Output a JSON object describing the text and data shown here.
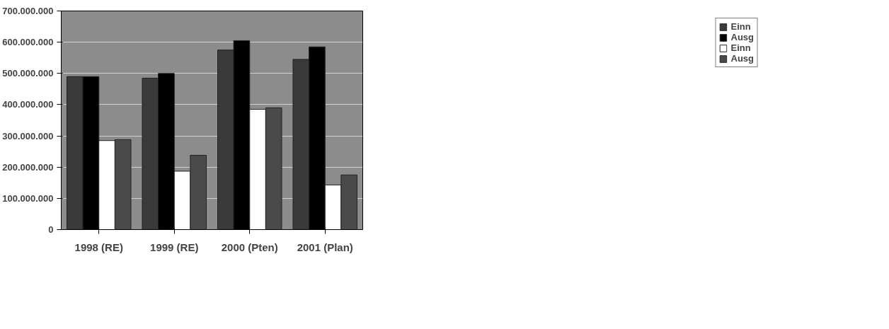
{
  "chart_data": {
    "type": "bar",
    "categories": [
      "1998 (RE)",
      "1999 (RE)",
      "2000 (Pten)",
      "2001 (Plan)"
    ],
    "series": [
      {
        "name": "Einn",
        "color": "#3a3a3a",
        "values": [
          490000000,
          485000000,
          575000000,
          545000000
        ]
      },
      {
        "name": "Ausg",
        "color": "#000000",
        "values": [
          490000000,
          500000000,
          605000000,
          585000000
        ]
      },
      {
        "name": "Einn",
        "color": "#ffffff",
        "values": [
          285000000,
          187000000,
          385000000,
          143000000
        ]
      },
      {
        "name": "Ausg",
        "color": "#4a4a4a",
        "values": [
          288000000,
          238000000,
          390000000,
          175000000
        ]
      }
    ],
    "ylim": [
      0,
      700000000
    ],
    "yticks": [
      0,
      {
        "value": 100000000,
        "label": "100.000.000"
      },
      {
        "value": 200000000,
        "label": "200.000.000"
      },
      {
        "value": 300000000,
        "label": "300.000.000"
      },
      {
        "value": 400000000,
        "label": "400.000.000"
      },
      {
        "value": 500000000,
        "label": "500.000.000"
      },
      {
        "value": 600000000,
        "label": "600.000.000"
      },
      {
        "value": 700000000,
        "label": "700.000.000"
      }
    ],
    "grid": "y",
    "legend": "right"
  }
}
